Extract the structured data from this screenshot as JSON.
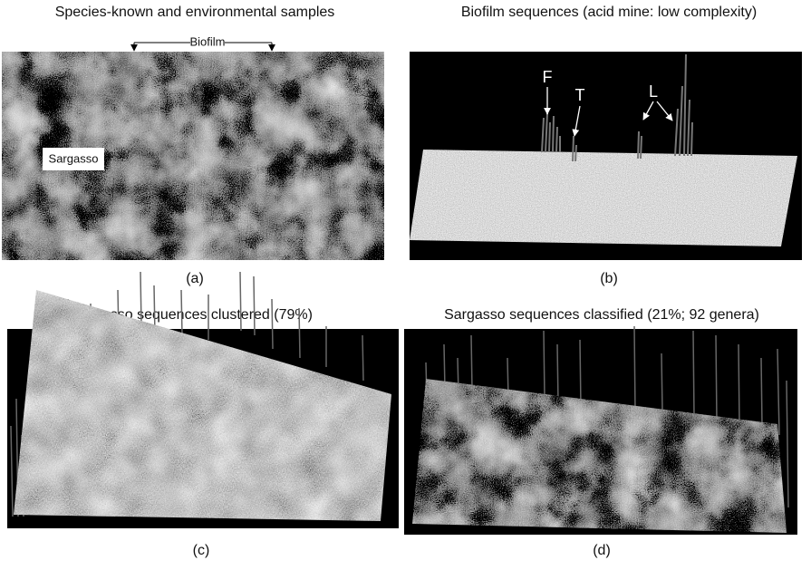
{
  "panels": [
    {
      "title": "Species-known and environmental samples",
      "caption": "(a)",
      "annotations": [
        "Biofilm",
        "Sargasso"
      ]
    },
    {
      "title": "Biofilm sequences (acid mine: low complexity)",
      "caption": "(b)",
      "annotations": [
        "F",
        "T",
        "L"
      ]
    },
    {
      "title": "Sargasso sequences clustered (79%)",
      "caption": "(c)"
    },
    {
      "title": "Sargasso sequences classified (21%; 92 genera)",
      "caption": "(d)"
    }
  ]
}
